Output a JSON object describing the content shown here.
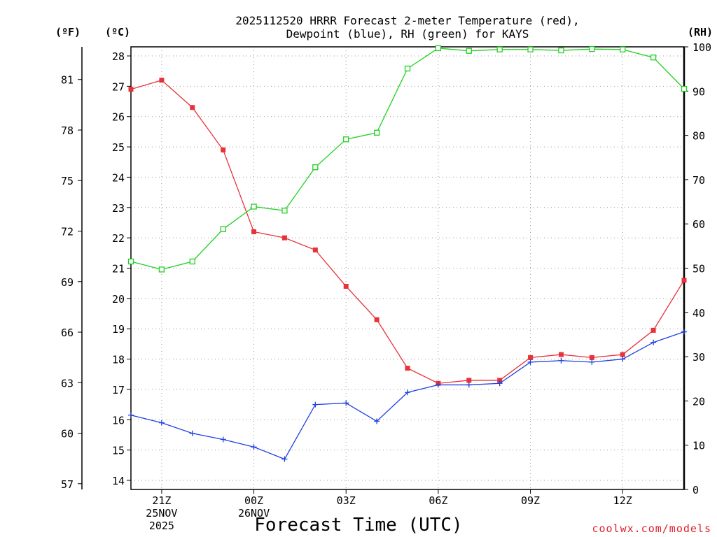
{
  "chart_data": {
    "type": "line",
    "title_lines": [
      "2025112520 HRRR Forecast 2-meter Temperature (red),",
      "Dewpoint (blue), RH (green) for KAYS"
    ],
    "xlabel": "Forecast Time (UTC)",
    "credit": "coolwx.com/models",
    "x": [
      0,
      1,
      2,
      3,
      4,
      5,
      6,
      7,
      8,
      9,
      10,
      11,
      12,
      13,
      14,
      15,
      16,
      17,
      18
    ],
    "xlim": [
      0,
      18
    ],
    "x_ticks": [
      {
        "x": 1,
        "lines": [
          "21Z",
          "25NOV",
          "2025"
        ]
      },
      {
        "x": 4,
        "lines": [
          "00Z",
          "26NOV"
        ]
      },
      {
        "x": 7,
        "lines": [
          "03Z"
        ]
      },
      {
        "x": 10,
        "lines": [
          "06Z"
        ]
      },
      {
        "x": 13,
        "lines": [
          "09Z"
        ]
      },
      {
        "x": 16,
        "lines": [
          "12Z"
        ]
      }
    ],
    "axes": {
      "celsius": {
        "unit_label": "(ºC)",
        "ylim": [
          13.7,
          28.3
        ],
        "ticks": [
          14,
          15,
          16,
          17,
          18,
          19,
          20,
          21,
          22,
          23,
          24,
          25,
          26,
          27,
          28
        ]
      },
      "fahrenheit": {
        "unit_label": "(ºF)",
        "ticks": [
          57,
          60,
          63,
          66,
          69,
          72,
          75,
          78,
          81
        ]
      },
      "rh": {
        "unit_label": "(RH)",
        "ylim": [
          0,
          100
        ],
        "ticks": [
          0,
          10,
          20,
          30,
          40,
          50,
          60,
          70,
          80,
          90,
          100
        ]
      }
    },
    "series": [
      {
        "name": "2-meter Temperature",
        "axis": "celsius",
        "color": "#e8323a",
        "marker": "filled-square",
        "values": [
          26.9,
          27.2,
          26.3,
          24.9,
          22.2,
          22.0,
          21.6,
          20.4,
          19.3,
          17.7,
          17.2,
          17.3,
          17.3,
          18.05,
          18.15,
          18.05,
          18.15,
          18.95,
          20.6
        ]
      },
      {
        "name": "Dewpoint",
        "axis": "celsius",
        "color": "#2040e0",
        "marker": "plus",
        "values": [
          16.15,
          15.9,
          15.55,
          15.35,
          15.1,
          14.7,
          16.5,
          16.55,
          15.95,
          16.9,
          17.15,
          17.15,
          17.2,
          17.9,
          17.95,
          17.9,
          18.0,
          18.55,
          18.9
        ]
      },
      {
        "name": "RH",
        "axis": "rh",
        "color": "#20d020",
        "marker": "open-square",
        "values": [
          51.5,
          49.7,
          51.5,
          58.8,
          63.9,
          63.0,
          72.8,
          79.1,
          80.6,
          95.1,
          99.7,
          99.1,
          99.4,
          99.4,
          99.2,
          99.5,
          99.4,
          97.6,
          90.5
        ]
      }
    ]
  }
}
